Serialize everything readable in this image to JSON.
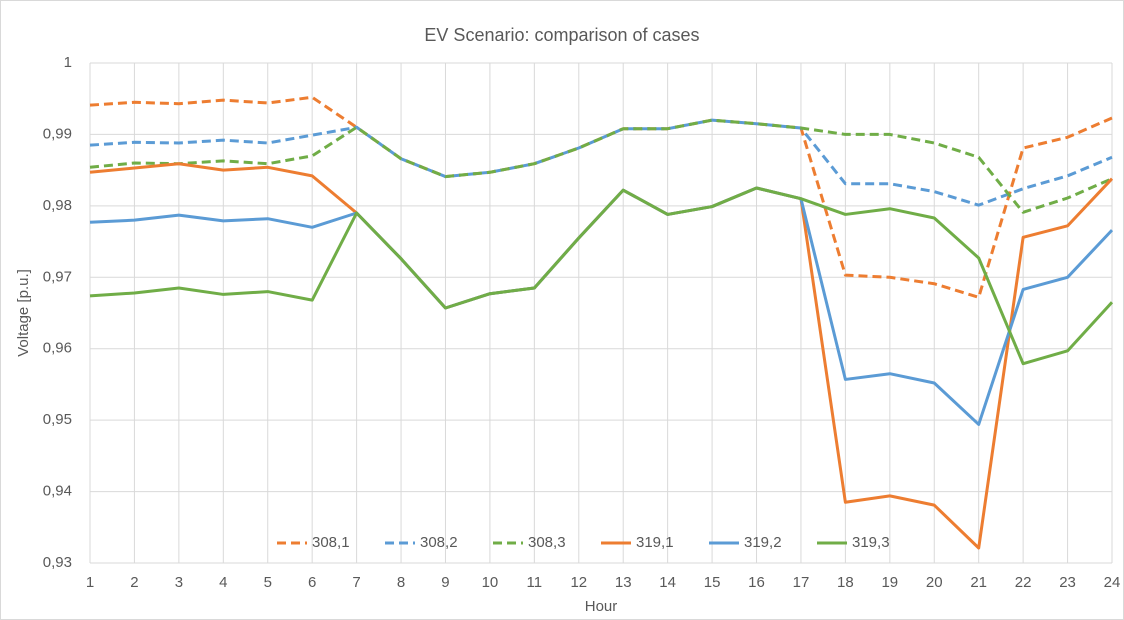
{
  "chart_data": {
    "type": "line",
    "title": "EV Scenario: comparison of cases",
    "x_label": "Hour",
    "y_label": "Voltage [p.u.]",
    "x": [
      1,
      2,
      3,
      4,
      5,
      6,
      7,
      8,
      9,
      10,
      11,
      12,
      13,
      14,
      15,
      16,
      17,
      18,
      19,
      20,
      21,
      22,
      23,
      24
    ],
    "xlim": [
      1,
      24
    ],
    "xticks": [
      1,
      2,
      3,
      4,
      5,
      6,
      7,
      8,
      9,
      10,
      11,
      12,
      13,
      14,
      15,
      16,
      17,
      18,
      19,
      20,
      21,
      22,
      23,
      24
    ],
    "ylim": [
      0.93,
      1
    ],
    "yticks": [
      {
        "value": 0.93,
        "label": "0,93"
      },
      {
        "value": 0.94,
        "label": "0,94"
      },
      {
        "value": 0.95,
        "label": "0,95"
      },
      {
        "value": 0.96,
        "label": "0,96"
      },
      {
        "value": 0.97,
        "label": "0,97"
      },
      {
        "value": 0.98,
        "label": "0,98"
      },
      {
        "value": 0.99,
        "label": "0,99"
      },
      1
    ],
    "grid": true,
    "legend": "bottom",
    "series": [
      {
        "name": "308,1",
        "color": "#ed7d31",
        "dash": true,
        "values": [
          0.9941,
          0.9945,
          0.9943,
          0.9948,
          0.9944,
          0.9952,
          0.991,
          0.9866,
          0.9841,
          0.9847,
          0.9859,
          0.9881,
          0.9908,
          0.9908,
          0.992,
          0.9915,
          0.9909,
          0.9703,
          0.97,
          0.9691,
          0.9672,
          0.9881,
          0.9896,
          0.9923
        ]
      },
      {
        "name": "308,2",
        "color": "#5b9bd5",
        "dash": true,
        "values": [
          0.9885,
          0.9889,
          0.9888,
          0.9892,
          0.9888,
          0.9899,
          0.991,
          0.9866,
          0.9841,
          0.9847,
          0.9859,
          0.9881,
          0.9908,
          0.9908,
          0.992,
          0.9915,
          0.9909,
          0.9831,
          0.9831,
          0.982,
          0.9801,
          0.9824,
          0.9842,
          0.9868
        ]
      },
      {
        "name": "308,3",
        "color": "#70ad47",
        "dash": true,
        "values": [
          0.9854,
          0.986,
          0.9859,
          0.9863,
          0.9859,
          0.987,
          0.991,
          0.9866,
          0.9841,
          0.9847,
          0.9859,
          0.9881,
          0.9908,
          0.9908,
          0.992,
          0.9915,
          0.9909,
          0.99,
          0.99,
          0.9888,
          0.9868,
          0.9791,
          0.9811,
          0.9838
        ]
      },
      {
        "name": "319,1",
        "color": "#ed7d31",
        "dash": false,
        "values": [
          0.9847,
          0.9853,
          0.9859,
          0.985,
          0.9854,
          0.9842,
          0.979,
          0.9726,
          0.9657,
          0.9677,
          0.9685,
          0.9755,
          0.9822,
          0.9788,
          0.9799,
          0.9825,
          0.981,
          0.9385,
          0.9394,
          0.9381,
          0.9321,
          0.9756,
          0.9772,
          0.9838
        ]
      },
      {
        "name": "319,2",
        "color": "#5b9bd5",
        "dash": false,
        "values": [
          0.9777,
          0.978,
          0.9787,
          0.9779,
          0.9782,
          0.977,
          0.979,
          0.9726,
          0.9657,
          0.9677,
          0.9685,
          0.9755,
          0.9822,
          0.9788,
          0.9799,
          0.9825,
          0.981,
          0.9557,
          0.9565,
          0.9552,
          0.9494,
          0.9683,
          0.97,
          0.9766
        ]
      },
      {
        "name": "319,3",
        "color": "#70ad47",
        "dash": false,
        "values": [
          0.9674,
          0.9678,
          0.9685,
          0.9676,
          0.968,
          0.9668,
          0.979,
          0.9726,
          0.9657,
          0.9677,
          0.9685,
          0.9755,
          0.9822,
          0.9788,
          0.9799,
          0.9825,
          0.981,
          0.9788,
          0.9796,
          0.9783,
          0.9727,
          0.9579,
          0.9597,
          0.9665
        ]
      }
    ]
  }
}
